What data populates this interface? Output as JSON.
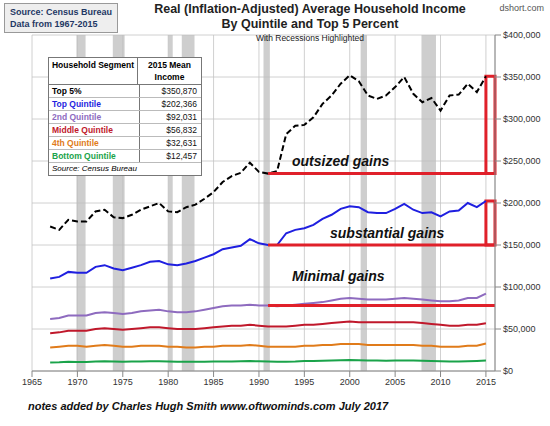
{
  "chart_data": {
    "type": "line",
    "title": "Real (Inflation-Adjusted) Average Household Income",
    "subtitle": "By Quintile and Top 5 Percent",
    "caption": "With Recessions Highlighted",
    "source": [
      "Source: Census Bureau",
      "Data from 1967-2015"
    ],
    "credit": "dshort.com",
    "footnote": "notes added by Charles Hugh Smith www.oftwominds.com July 2017",
    "annotations": [
      "outsized gains",
      "substantial gains",
      "Minimal gains"
    ],
    "x": [
      1967,
      1968,
      1969,
      1970,
      1971,
      1972,
      1973,
      1974,
      1975,
      1976,
      1977,
      1978,
      1979,
      1980,
      1981,
      1982,
      1983,
      1984,
      1985,
      1986,
      1987,
      1988,
      1989,
      1990,
      1991,
      1992,
      1993,
      1994,
      1995,
      1996,
      1997,
      1998,
      1999,
      2000,
      2001,
      2002,
      2003,
      2004,
      2005,
      2006,
      2007,
      2008,
      2009,
      2010,
      2011,
      2012,
      2013,
      2014,
      2015
    ],
    "series": [
      {
        "name": "Top 5%",
        "color": "#000000",
        "line_style": "dashed",
        "values": [
          172000,
          168000,
          180000,
          178000,
          178000,
          190000,
          192000,
          183000,
          182000,
          186000,
          192000,
          196000,
          200000,
          190000,
          189000,
          195000,
          198000,
          205000,
          213000,
          225000,
          232000,
          236000,
          248000,
          237000,
          235000,
          238000,
          282000,
          292000,
          293000,
          302000,
          318000,
          328000,
          342000,
          352000,
          345000,
          328000,
          324000,
          328000,
          338000,
          350000,
          330000,
          320000,
          325000,
          310000,
          328000,
          329000,
          342000,
          332000,
          350870
        ]
      },
      {
        "name": "Top Quintile",
        "color": "#1f1fe0",
        "line_style": "solid",
        "values": [
          110000,
          112000,
          118000,
          117000,
          117000,
          124000,
          126000,
          122000,
          120000,
          123000,
          126000,
          130000,
          131000,
          127000,
          126000,
          128000,
          131000,
          135000,
          139000,
          145000,
          147000,
          149000,
          157000,
          152000,
          150000,
          150000,
          164000,
          168000,
          170000,
          174000,
          181000,
          186000,
          193000,
          196000,
          195000,
          189000,
          188000,
          188000,
          193000,
          199000,
          192000,
          188000,
          189000,
          184000,
          190000,
          191000,
          200000,
          195000,
          202366
        ]
      },
      {
        "name": "2nd Quintile",
        "color": "#8e6bbf",
        "line_style": "solid",
        "values": [
          62000,
          63000,
          66000,
          66000,
          66000,
          69000,
          70000,
          69000,
          68000,
          69000,
          71000,
          72000,
          73000,
          71000,
          70000,
          70000,
          71000,
          73000,
          75000,
          77000,
          78000,
          78000,
          79000,
          78000,
          78000,
          77000,
          78000,
          79000,
          80000,
          81000,
          82000,
          84000,
          86000,
          87000,
          86000,
          85000,
          85000,
          85000,
          86000,
          87000,
          86000,
          85000,
          84000,
          83000,
          83000,
          84000,
          87000,
          87000,
          92031
        ]
      },
      {
        "name": "Middle Quintile",
        "color": "#c0182b",
        "line_style": "solid",
        "values": [
          45000,
          46000,
          48000,
          48000,
          48000,
          50000,
          51000,
          50000,
          49000,
          50000,
          51000,
          52000,
          52000,
          51000,
          50000,
          50000,
          50000,
          51000,
          52000,
          53000,
          54000,
          54000,
          55000,
          54000,
          53000,
          53000,
          53000,
          54000,
          55000,
          55000,
          56000,
          57000,
          58000,
          59000,
          58000,
          58000,
          58000,
          58000,
          58000,
          58000,
          58000,
          57000,
          56000,
          55000,
          54000,
          54000,
          55000,
          55000,
          56832
        ]
      },
      {
        "name": "4th Quintile",
        "color": "#e07b1a",
        "line_style": "solid",
        "values": [
          28000,
          29000,
          30000,
          30000,
          29000,
          30000,
          31000,
          30000,
          29000,
          29000,
          30000,
          30000,
          30000,
          29000,
          29000,
          28000,
          28000,
          29000,
          29000,
          30000,
          30000,
          30000,
          31000,
          30000,
          29000,
          29000,
          29000,
          29000,
          30000,
          30000,
          31000,
          31000,
          32000,
          32000,
          32000,
          31000,
          31000,
          31000,
          31000,
          31000,
          31000,
          30000,
          30000,
          29000,
          29000,
          29000,
          30000,
          30000,
          32631
        ]
      },
      {
        "name": "Bottom Quintile",
        "color": "#1aa34a",
        "line_style": "solid",
        "values": [
          10000,
          10300,
          10900,
          10800,
          10800,
          11200,
          11500,
          11400,
          11000,
          11200,
          11300,
          11600,
          11600,
          11300,
          11000,
          10900,
          10900,
          11100,
          11200,
          11300,
          11400,
          11500,
          11800,
          11600,
          11300,
          11000,
          11000,
          11200,
          11800,
          12000,
          12100,
          12400,
          12900,
          13200,
          12900,
          12600,
          12400,
          12300,
          12400,
          12600,
          12500,
          12100,
          11900,
          11500,
          11300,
          11400,
          11700,
          12000,
          12457
        ]
      }
    ],
    "xlim": [
      1965,
      2016
    ],
    "xticks": [
      1965,
      1970,
      1975,
      1980,
      1985,
      1990,
      1995,
      2000,
      2005,
      2010,
      2015
    ],
    "ylim": [
      0,
      400000
    ],
    "yticks": [
      {
        "value": 0,
        "label": "$0"
      },
      {
        "value": 50000,
        "label": "$50,000"
      },
      {
        "value": 100000,
        "label": "$100,000"
      },
      {
        "value": 150000,
        "label": "$150,000"
      },
      {
        "value": 200000,
        "label": "$200,000"
      },
      {
        "value": 250000,
        "label": "$250,000"
      },
      {
        "value": 300000,
        "label": "$300,000"
      },
      {
        "value": 350000,
        "label": "$350,000"
      },
      {
        "value": 400000,
        "label": "$400,000"
      }
    ],
    "grid": true,
    "recessions": [
      [
        1969.9,
        1970.9
      ],
      [
        1973.9,
        1975.2
      ],
      [
        1980.0,
        1980.5
      ],
      [
        1981.5,
        1982.9
      ],
      [
        1990.5,
        1991.2
      ],
      [
        2001.2,
        2001.9
      ],
      [
        2007.9,
        2009.5
      ]
    ],
    "brackets": [
      {
        "from": 1991,
        "level": 235000,
        "top": 350870,
        "color": "#e0202a"
      },
      {
        "from": 1991,
        "level": 150000,
        "top": 202366,
        "color": "#e0202a"
      },
      {
        "from": 1991,
        "level": 78000,
        "color": "#e0202a"
      }
    ],
    "table": {
      "columns": [
        "Household Segment",
        "2015 Mean Income"
      ],
      "rows": [
        [
          "Top 5%",
          "$350,870"
        ],
        [
          "Top Quintile",
          "$202,366"
        ],
        [
          "2nd Quintile",
          "$92,031"
        ],
        [
          "Middle Quintile",
          "$56,832"
        ],
        [
          "4th Quintile",
          "$32,631"
        ],
        [
          "Bottom Quintile",
          "$12,457"
        ]
      ],
      "caption": "Source: Census Bureau"
    }
  }
}
